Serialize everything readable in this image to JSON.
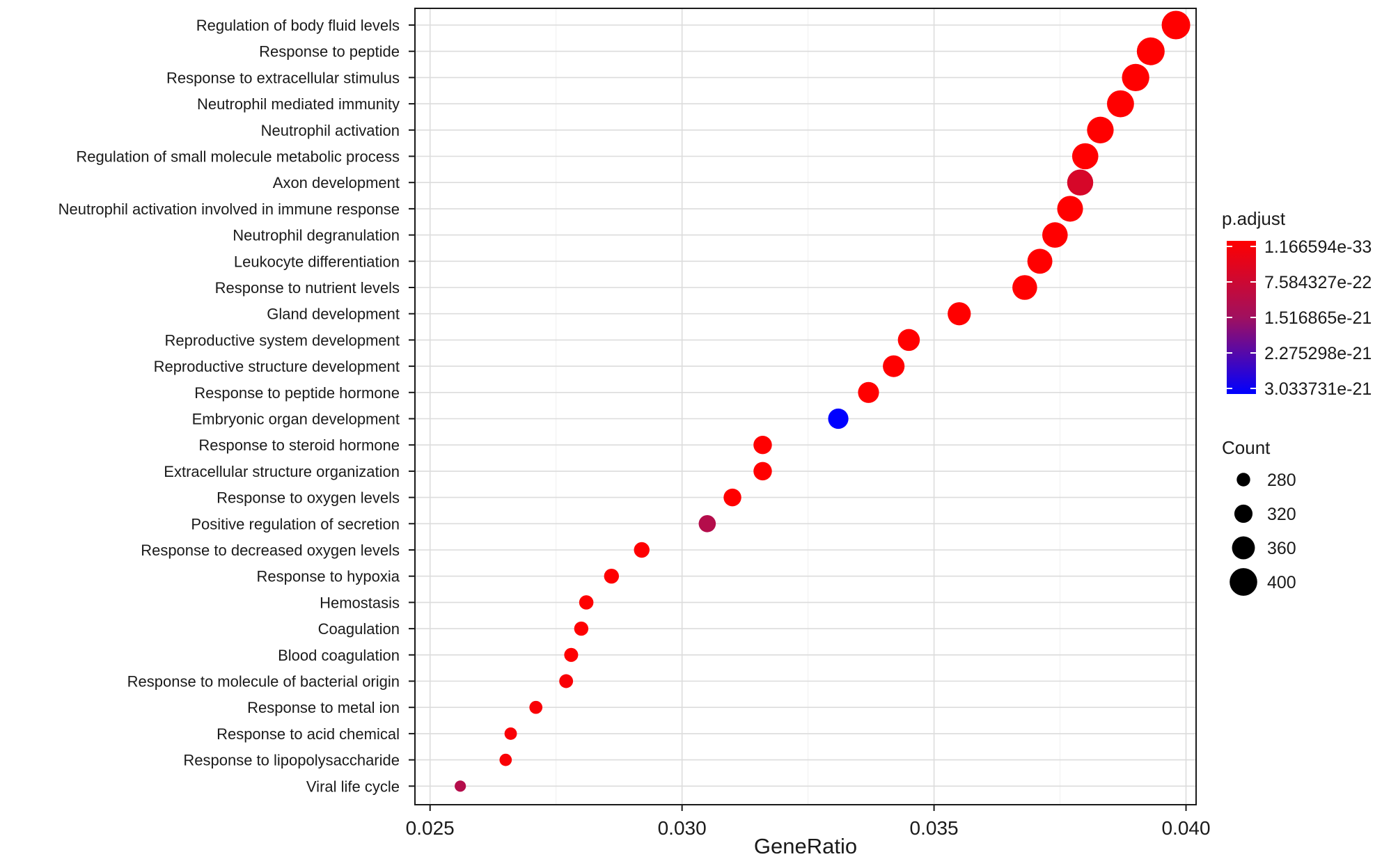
{
  "chart_data": {
    "type": "scatter",
    "xlabel": "GeneRatio",
    "ylabel": "",
    "xlim": [
      0.0247,
      0.0402
    ],
    "x_ticks": [
      "0.025",
      "0.030",
      "0.035",
      "0.040"
    ],
    "grid": true,
    "legend_position": "right",
    "categories": [
      "Regulation of body fluid levels",
      "Response to peptide",
      "Response to extracellular stimulus",
      "Neutrophil mediated immunity",
      "Neutrophil activation",
      "Regulation of small molecule metabolic process",
      "Axon development",
      "Neutrophil activation involved in immune response",
      "Neutrophil degranulation",
      "Leukocyte differentiation",
      "Response to nutrient levels",
      "Gland development",
      "Reproductive system development",
      "Reproductive structure development",
      "Response to peptide hormone",
      "Embryonic organ development",
      "Response to steroid hormone",
      "Extracellular structure organization",
      "Response to oxygen levels",
      "Positive regulation of secretion",
      "Response to decreased oxygen levels",
      "Response to hypoxia",
      "Hemostasis",
      "Coagulation",
      "Blood coagulation",
      "Response to molecule of bacterial origin",
      "Response to metal ion",
      "Response to acid chemical",
      "Response to lipopolysaccharide",
      "Viral life cycle"
    ],
    "points": [
      {
        "term": "Regulation of body fluid levels",
        "gene_ratio": 0.0398,
        "count": 408,
        "p_adjust": 1.2e-33
      },
      {
        "term": "Response to peptide",
        "gene_ratio": 0.0393,
        "count": 402,
        "p_adjust": 1e-32
      },
      {
        "term": "Response to extracellular stimulus",
        "gene_ratio": 0.039,
        "count": 398,
        "p_adjust": 1e-31
      },
      {
        "term": "Neutrophil mediated immunity",
        "gene_ratio": 0.0387,
        "count": 395,
        "p_adjust": 1e-30
      },
      {
        "term": "Neutrophil activation",
        "gene_ratio": 0.0383,
        "count": 392,
        "p_adjust": 1e-30
      },
      {
        "term": "Regulation of small molecule metabolic process",
        "gene_ratio": 0.038,
        "count": 388,
        "p_adjust": 1e-29
      },
      {
        "term": "Axon development",
        "gene_ratio": 0.0379,
        "count": 387,
        "p_adjust": 6.5e-22
      },
      {
        "term": "Neutrophil activation involved in immune response",
        "gene_ratio": 0.0377,
        "count": 385,
        "p_adjust": 1e-29
      },
      {
        "term": "Neutrophil degranulation",
        "gene_ratio": 0.0374,
        "count": 382,
        "p_adjust": 1e-29
      },
      {
        "term": "Leukocyte differentiation",
        "gene_ratio": 0.0371,
        "count": 378,
        "p_adjust": 1e-28
      },
      {
        "term": "Response to nutrient levels",
        "gene_ratio": 0.0368,
        "count": 376,
        "p_adjust": 1e-27
      },
      {
        "term": "Gland development",
        "gene_ratio": 0.0355,
        "count": 362,
        "p_adjust": 1e-26
      },
      {
        "term": "Reproductive system development",
        "gene_ratio": 0.0345,
        "count": 352,
        "p_adjust": 1e-25
      },
      {
        "term": "Reproductive structure development",
        "gene_ratio": 0.0342,
        "count": 350,
        "p_adjust": 1e-25
      },
      {
        "term": "Response to peptide hormone",
        "gene_ratio": 0.0337,
        "count": 344,
        "p_adjust": 1e-24
      },
      {
        "term": "Embryonic organ development",
        "gene_ratio": 0.0331,
        "count": 338,
        "p_adjust": 3.03e-21
      },
      {
        "term": "Response to steroid hormone",
        "gene_ratio": 0.0316,
        "count": 322,
        "p_adjust": 1e-24
      },
      {
        "term": "Extracellular structure organization",
        "gene_ratio": 0.0316,
        "count": 322,
        "p_adjust": 1e-24
      },
      {
        "term": "Response to oxygen levels",
        "gene_ratio": 0.031,
        "count": 316,
        "p_adjust": 1e-24
      },
      {
        "term": "Positive regulation of secretion",
        "gene_ratio": 0.0305,
        "count": 311,
        "p_adjust": 1.2e-21
      },
      {
        "term": "Response to decreased oxygen levels",
        "gene_ratio": 0.0292,
        "count": 298,
        "p_adjust": 1e-23
      },
      {
        "term": "Response to hypoxia",
        "gene_ratio": 0.0286,
        "count": 292,
        "p_adjust": 1e-23
      },
      {
        "term": "Hemostasis",
        "gene_ratio": 0.0281,
        "count": 287,
        "p_adjust": 1e-23
      },
      {
        "term": "Coagulation",
        "gene_ratio": 0.028,
        "count": 286,
        "p_adjust": 1e-23
      },
      {
        "term": "Blood coagulation",
        "gene_ratio": 0.0278,
        "count": 284,
        "p_adjust": 1e-23
      },
      {
        "term": "Response to molecule of bacterial origin",
        "gene_ratio": 0.0277,
        "count": 283,
        "p_adjust": 1e-22
      },
      {
        "term": "Response to metal ion",
        "gene_ratio": 0.0271,
        "count": 276,
        "p_adjust": 1e-22
      },
      {
        "term": "Response to acid chemical",
        "gene_ratio": 0.0266,
        "count": 271,
        "p_adjust": 1e-22
      },
      {
        "term": "Response to lipopolysaccharide",
        "gene_ratio": 0.0265,
        "count": 270,
        "p_adjust": 1e-22
      },
      {
        "term": "Viral life cycle",
        "gene_ratio": 0.0256,
        "count": 261,
        "p_adjust": 1.2e-21
      }
    ],
    "color_legend": {
      "title": "p.adjust",
      "labels": [
        "1.166594e-33",
        "7.584327e-22",
        "1.516865e-21",
        "2.275298e-21",
        "3.033731e-21"
      ],
      "values": [
        1.166594e-33,
        7.584327e-22,
        1.516865e-21,
        2.275298e-21,
        3.033731e-21
      ],
      "low_color": "#ff0000",
      "high_color": "#0000ff"
    },
    "size_legend": {
      "title": "Count",
      "labels": [
        "280",
        "320",
        "360",
        "400"
      ],
      "values": [
        280,
        320,
        360,
        400
      ]
    }
  }
}
